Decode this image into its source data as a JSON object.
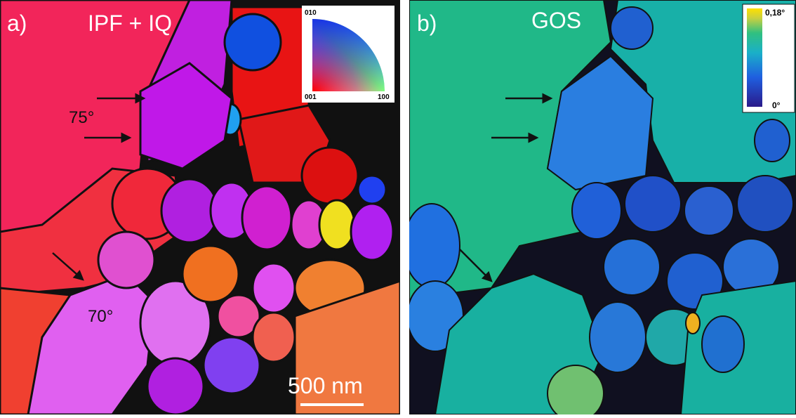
{
  "panel_a": {
    "label": "a)",
    "title": "IPF + IQ",
    "angle_1": "75°",
    "angle_2": "70°",
    "scale_bar": "500 nm",
    "legend": {
      "top": "010",
      "left": "001",
      "right": "100"
    }
  },
  "panel_b": {
    "label": "b)",
    "title": "GOS",
    "colorbar": {
      "max": "0,18°",
      "min": "0°"
    }
  }
}
